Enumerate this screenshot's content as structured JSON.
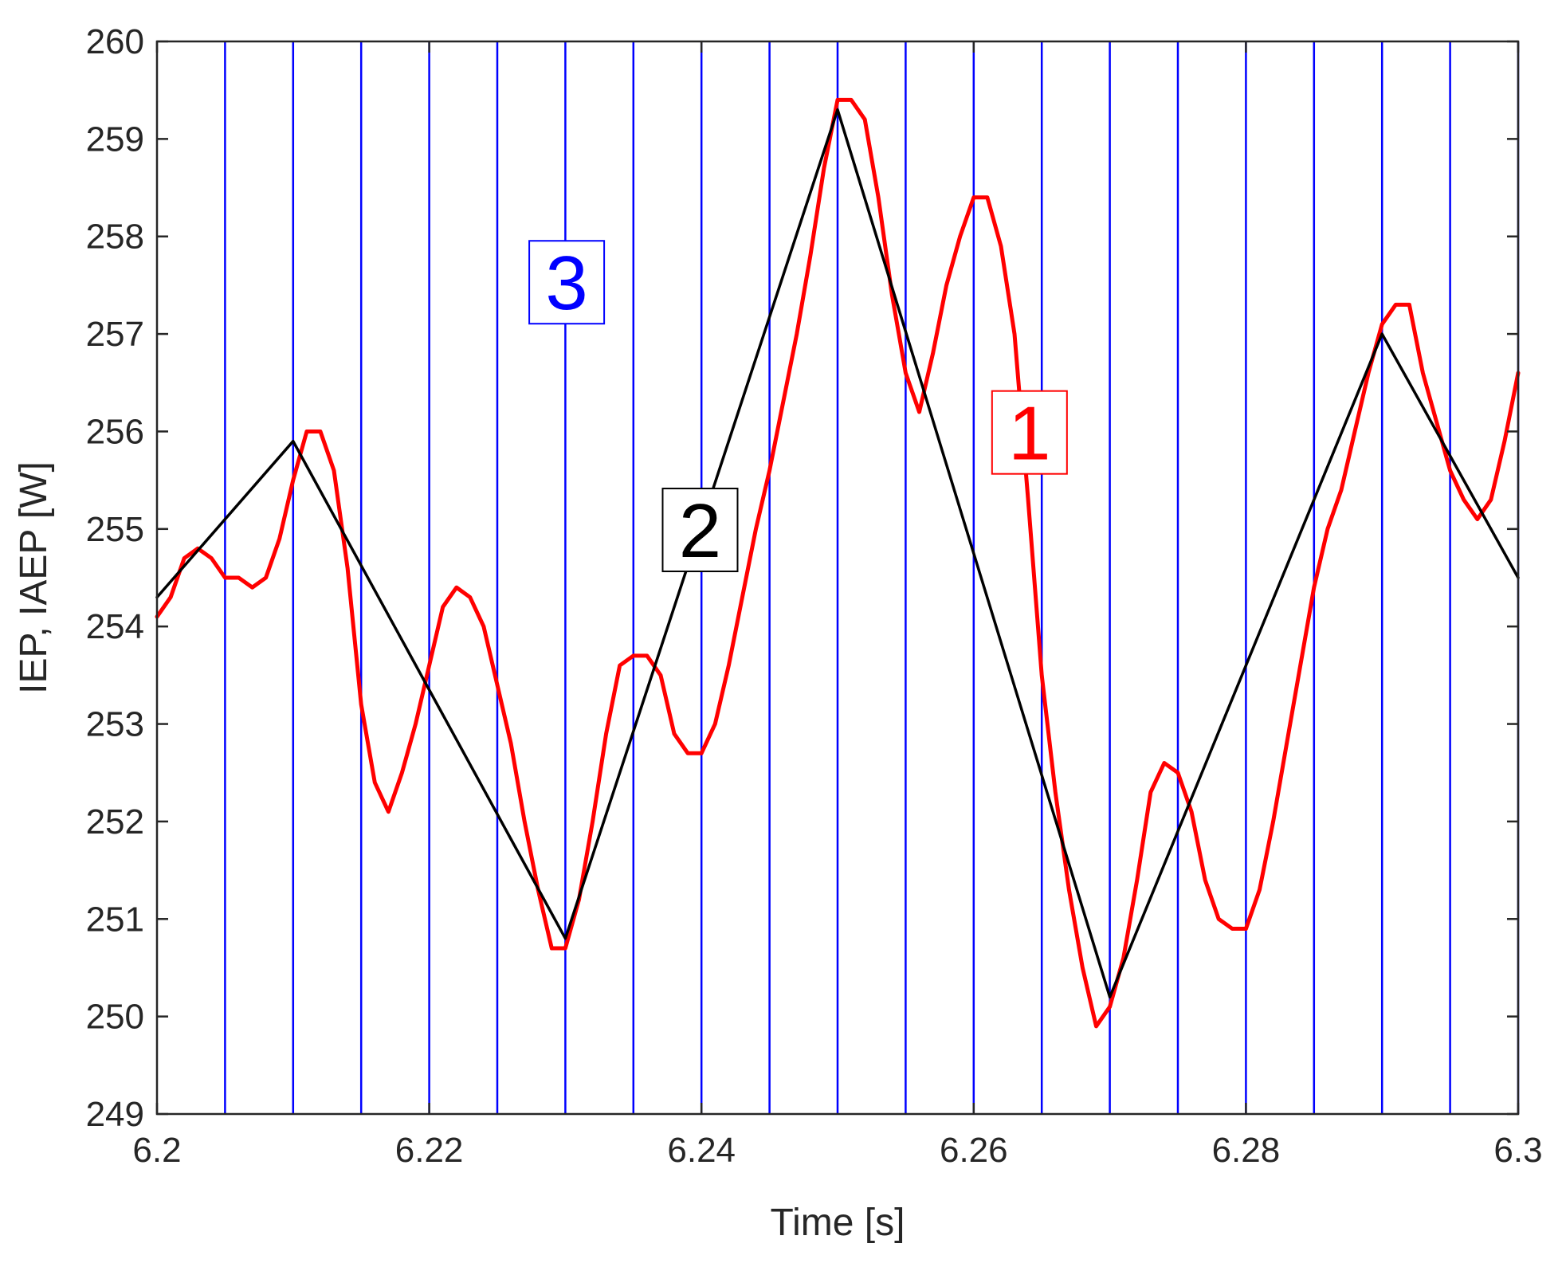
{
  "chart_data": {
    "type": "line",
    "xlabel": "Time [s]",
    "ylabel": "IEP, IAEP [W]",
    "xlim": [
      6.2,
      6.3
    ],
    "ylim": [
      249,
      260
    ],
    "xticks": [
      6.2,
      6.22,
      6.24,
      6.26,
      6.28,
      6.3
    ],
    "xtick_labels": [
      "6.2",
      "6.22",
      "6.24",
      "6.26",
      "6.28",
      "6.3"
    ],
    "yticks": [
      249,
      250,
      251,
      252,
      253,
      254,
      255,
      256,
      257,
      258,
      259,
      260
    ],
    "ytick_labels": [
      "249",
      "250",
      "251",
      "252",
      "253",
      "254",
      "255",
      "256",
      "257",
      "258",
      "259",
      "260"
    ],
    "grid": false,
    "series": [
      {
        "id": "1",
        "color": "#ff0000",
        "x": [
          6.2,
          6.201,
          6.202,
          6.203,
          6.204,
          6.205,
          6.206,
          6.207,
          6.208,
          6.209,
          6.21,
          6.211,
          6.212,
          6.213,
          6.214,
          6.215,
          6.216,
          6.217,
          6.218,
          6.219,
          6.22,
          6.221,
          6.222,
          6.223,
          6.224,
          6.225,
          6.226,
          6.227,
          6.228,
          6.229,
          6.23,
          6.231,
          6.232,
          6.233,
          6.234,
          6.235,
          6.236,
          6.237,
          6.238,
          6.239,
          6.24,
          6.241,
          6.242,
          6.243,
          6.244,
          6.245,
          6.246,
          6.247,
          6.248,
          6.249,
          6.25,
          6.251,
          6.252,
          6.253,
          6.254,
          6.255,
          6.256,
          6.257,
          6.258,
          6.259,
          6.26,
          6.261,
          6.262,
          6.263,
          6.264,
          6.265,
          6.266,
          6.267,
          6.268,
          6.269,
          6.27,
          6.271,
          6.272,
          6.273,
          6.274,
          6.275,
          6.276,
          6.277,
          6.278,
          6.279,
          6.28,
          6.281,
          6.282,
          6.283,
          6.284,
          6.285,
          6.286,
          6.287,
          6.288,
          6.289,
          6.29,
          6.291,
          6.292,
          6.293,
          6.294,
          6.295,
          6.296,
          6.297,
          6.298,
          6.299,
          6.3
        ],
        "y": [
          254.1,
          254.3,
          254.7,
          254.8,
          254.7,
          254.5,
          254.5,
          254.4,
          254.5,
          254.9,
          255.5,
          256.0,
          256.0,
          255.6,
          254.6,
          253.2,
          252.4,
          252.1,
          252.5,
          253.0,
          253.6,
          254.2,
          254.4,
          254.3,
          254.0,
          253.4,
          252.8,
          252.0,
          251.3,
          250.7,
          250.7,
          251.2,
          252.0,
          252.9,
          253.6,
          253.7,
          253.7,
          253.5,
          252.9,
          252.7,
          252.7,
          253.0,
          253.6,
          254.3,
          255.0,
          255.6,
          256.3,
          257.0,
          257.8,
          258.7,
          259.4,
          259.4,
          259.2,
          258.4,
          257.4,
          256.6,
          256.2,
          256.8,
          257.5,
          258.0,
          258.4,
          258.4,
          257.9,
          257.0,
          255.3,
          253.5,
          252.3,
          251.3,
          250.5,
          249.9,
          250.1,
          250.6,
          251.4,
          252.3,
          252.6,
          252.5,
          252.1,
          251.4,
          251.0,
          250.9,
          250.9,
          251.3,
          252.0,
          252.8,
          253.6,
          254.4,
          255.0,
          255.4,
          256.0,
          256.6,
          257.1,
          257.3,
          257.3,
          256.6,
          256.1,
          255.6,
          255.3,
          255.1,
          255.3,
          255.9,
          256.6
        ]
      },
      {
        "id": "2",
        "color": "#000000",
        "x": [
          6.2,
          6.21,
          6.23,
          6.25,
          6.27,
          6.29,
          6.3
        ],
        "y": [
          254.3,
          255.9,
          250.8,
          259.3,
          250.2,
          257.0,
          254.5
        ]
      },
      {
        "id": "3",
        "color": "#0000ff",
        "type": "vertical-lines",
        "x": [
          6.205,
          6.21,
          6.215,
          6.22,
          6.225,
          6.23,
          6.235,
          6.24,
          6.245,
          6.25,
          6.255,
          6.26,
          6.265,
          6.27,
          6.275,
          6.28,
          6.285,
          6.29,
          6.295,
          6.3
        ]
      }
    ],
    "annotations": [
      {
        "text": "1",
        "color": "#ff0000",
        "x": 6.2641,
        "y": 255.99
      },
      {
        "text": "2",
        "color": "#000000",
        "x": 6.2399,
        "y": 254.99
      },
      {
        "text": "3",
        "color": "#0000ff",
        "x": 6.2301,
        "y": 257.53
      }
    ]
  }
}
